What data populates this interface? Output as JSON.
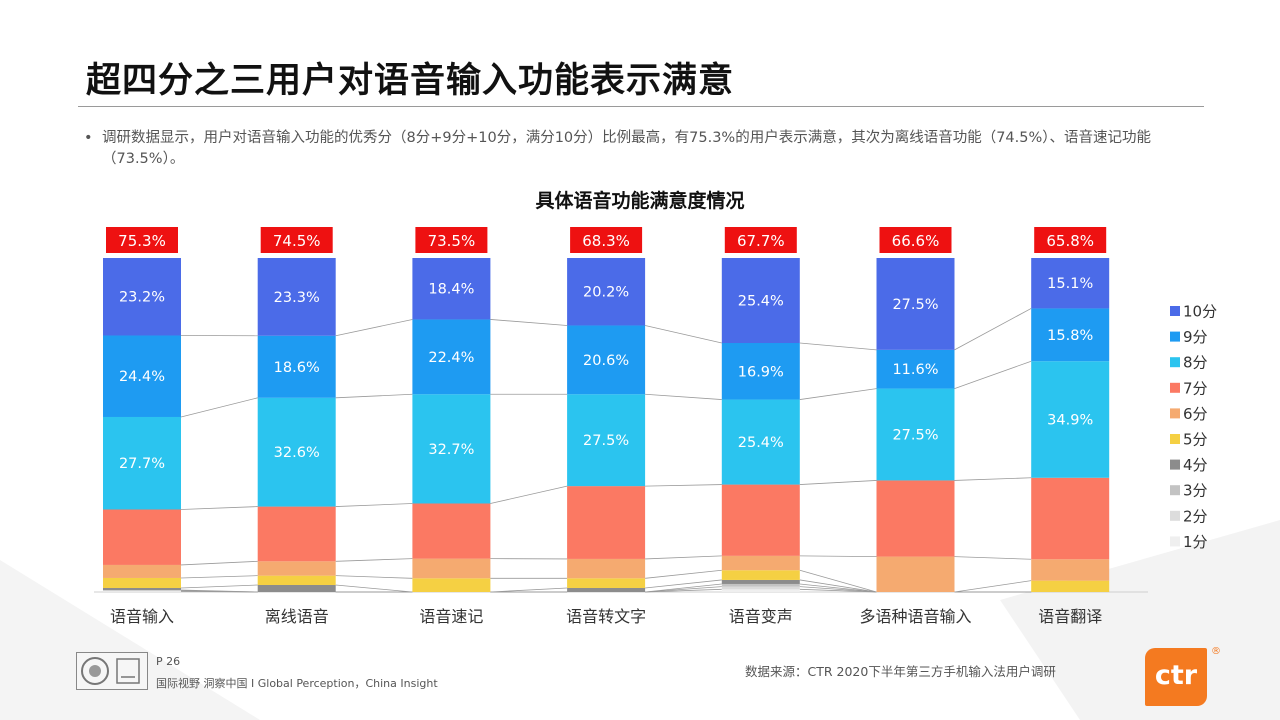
{
  "title": "超四分之三用户对语音输入功能表示满意",
  "bullet": "调研数据显示，用户对语音输入功能的优秀分（8分+9分+10分，满分10分）比例最高，有75.3%的用户表示满意，其次为离线语音功能（74.5%）、语音速记功能（73.5%）。",
  "bullet_marker": "•",
  "footer": {
    "page": "P 26",
    "slogan": "国际视野 洞察中国 I Global Perception，China Insight",
    "source": "数据来源：CTR 2020下半年第三方手机输入法用户调研",
    "logo_text": "ctr",
    "reg_mark": "®"
  },
  "chart_data": {
    "type": "bar",
    "stacked": true,
    "normalized": true,
    "title": "具体语音功能满意度情况",
    "categories": [
      "语音输入",
      "离线语音",
      "语音速记",
      "语音转文字",
      "语音变声",
      "多语种语音输入",
      "语音翻译"
    ],
    "totals": [
      "75.3%",
      "74.5%",
      "73.5%",
      "68.3%",
      "67.7%",
      "66.6%",
      "65.8%"
    ],
    "series": [
      {
        "name": "1分",
        "color": "#efefef",
        "values": [
          0.2,
          0.0,
          0.0,
          0.0,
          0.8,
          0.0,
          0.0
        ]
      },
      {
        "name": "2分",
        "color": "#dcdcdc",
        "values": [
          0.2,
          0.0,
          0.0,
          0.0,
          0.8,
          0.0,
          0.0
        ]
      },
      {
        "name": "3分",
        "color": "#c3c3c3",
        "values": [
          0.2,
          0.0,
          0.0,
          0.0,
          0.8,
          0.0,
          0.0
        ]
      },
      {
        "name": "4分",
        "color": "#8c8c8c",
        "values": [
          0.6,
          2.1,
          0.0,
          1.2,
          1.2,
          0.0,
          0.0
        ]
      },
      {
        "name": "5分",
        "color": "#f5d043",
        "values": [
          3.0,
          2.8,
          4.1,
          2.9,
          2.9,
          0.0,
          3.4
        ]
      },
      {
        "name": "6分",
        "color": "#f5aa70",
        "values": [
          3.9,
          4.3,
          5.9,
          5.8,
          4.3,
          10.6,
          6.4
        ]
      },
      {
        "name": "7分",
        "color": "#fb7963",
        "values": [
          16.6,
          16.4,
          16.5,
          21.8,
          21.3,
          22.8,
          24.4
        ]
      },
      {
        "name": "8分",
        "color": "#2bc4ef",
        "values": [
          27.7,
          32.6,
          32.7,
          27.5,
          25.4,
          27.5,
          34.9
        ],
        "labels": [
          "27.7%",
          "32.6%",
          "32.7%",
          "27.5%",
          "25.4%",
          "27.5%",
          "34.9%"
        ]
      },
      {
        "name": "9分",
        "color": "#1e9bf2",
        "values": [
          24.4,
          18.6,
          22.4,
          20.6,
          16.9,
          11.6,
          15.8
        ],
        "labels": [
          "24.4%",
          "18.6%",
          "22.4%",
          "20.6%",
          "16.9%",
          "11.6%",
          "15.8%"
        ]
      },
      {
        "name": "10分",
        "color": "#4b6be8",
        "values": [
          23.2,
          23.3,
          18.4,
          20.2,
          25.4,
          27.5,
          15.1
        ],
        "labels": [
          "23.2%",
          "23.3%",
          "18.4%",
          "20.2%",
          "25.4%",
          "27.5%",
          "15.1%"
        ]
      }
    ],
    "legend_position": "right",
    "total_label_color": "#ee1111",
    "grid": false
  }
}
